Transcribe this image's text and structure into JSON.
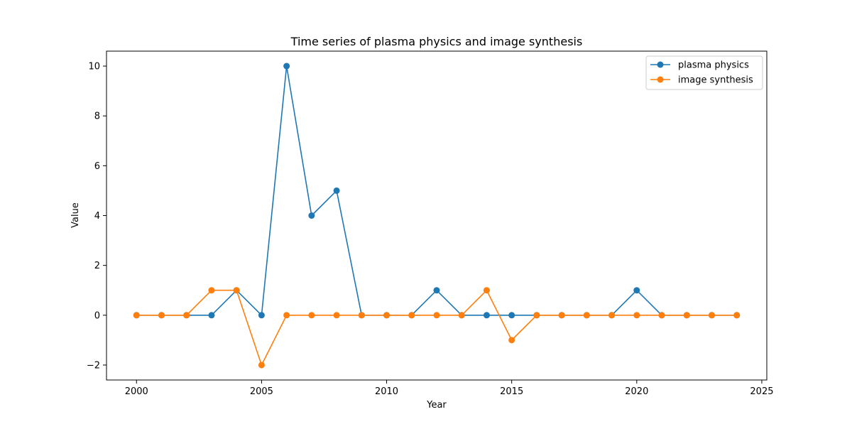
{
  "chart_data": {
    "type": "line",
    "title": "Time series of plasma physics and image synthesis",
    "xlabel": "Year",
    "ylabel": "Value",
    "x": [
      2000,
      2001,
      2002,
      2003,
      2004,
      2005,
      2006,
      2007,
      2008,
      2009,
      2010,
      2011,
      2012,
      2013,
      2014,
      2015,
      2016,
      2017,
      2018,
      2019,
      2020,
      2021,
      2022,
      2023,
      2024
    ],
    "series": [
      {
        "name": "plasma physics",
        "color": "#1f77b4",
        "values": [
          0,
          0,
          0,
          0,
          1,
          0,
          10,
          4,
          5,
          0,
          0,
          0,
          1,
          0,
          0,
          0,
          0,
          0,
          0,
          0,
          1,
          0,
          0,
          0,
          0
        ]
      },
      {
        "name": "image synthesis",
        "color": "#ff7f0e",
        "values": [
          0,
          0,
          0,
          1,
          1,
          -2,
          0,
          0,
          0,
          0,
          0,
          0,
          0,
          0,
          1,
          -1,
          0,
          0,
          0,
          0,
          0,
          0,
          0,
          0,
          0
        ]
      }
    ],
    "xlim": [
      1998.8,
      2025.2
    ],
    "ylim": [
      -2.6,
      10.6
    ],
    "xticks": [
      2000,
      2005,
      2010,
      2015,
      2020,
      2025
    ],
    "yticks": [
      -2,
      0,
      2,
      4,
      6,
      8,
      10
    ],
    "ytick_labels": [
      "−2",
      "0",
      "2",
      "4",
      "6",
      "8",
      "10"
    ],
    "grid": false,
    "legend_position": "top-right"
  }
}
